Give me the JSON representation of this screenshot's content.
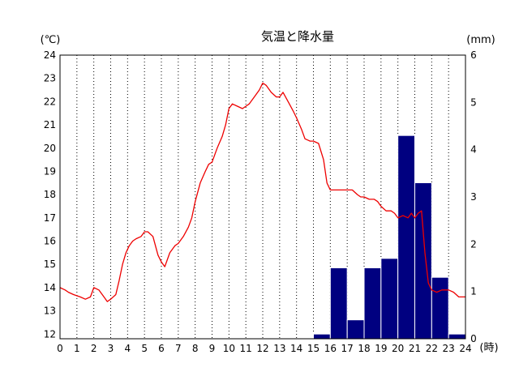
{
  "chart_data": {
    "type": "bar+line",
    "title": "気温と降水量",
    "left_unit": "(℃)",
    "right_unit": "(mm)",
    "x_unit": "(時)",
    "x_ticks": [
      "0",
      "1",
      "2",
      "3",
      "4",
      "5",
      "6",
      "7",
      "8",
      "9",
      "10",
      "11",
      "12",
      "13",
      "14",
      "15",
      "16",
      "17",
      "18",
      "19",
      "20",
      "21",
      "22",
      "23",
      "24"
    ],
    "xlim": [
      0,
      24
    ],
    "ylim_left": [
      11.8,
      24
    ],
    "ylim_right": [
      0,
      6
    ],
    "y_ticks_left": [
      "24",
      "23",
      "22",
      "21",
      "20",
      "19",
      "18",
      "17",
      "16",
      "15",
      "14",
      "13",
      "12"
    ],
    "y_ticks_right": [
      "6",
      "5",
      "4",
      "3",
      "2",
      "1",
      "0"
    ],
    "grid": "vertical dotted at each hour",
    "colors": {
      "temperature": "#ee0000",
      "precipitation": "#000080"
    },
    "series": [
      {
        "kind": "line",
        "axis": "left",
        "x": [
          0,
          0.3,
          0.5,
          0.8,
          1.2,
          1.5,
          1.8,
          2.0,
          2.3,
          2.6,
          2.8,
          3.0,
          3.3,
          3.5,
          3.7,
          3.9,
          4.1,
          4.3,
          4.5,
          4.8,
          5.0,
          5.2,
          5.5,
          5.8,
          6.0,
          6.2,
          6.5,
          6.8,
          7.0,
          7.3,
          7.6,
          7.8,
          8.0,
          8.3,
          8.6,
          8.8,
          9.0,
          9.3,
          9.6,
          9.8,
          10.0,
          10.2,
          10.5,
          10.8,
          11.0,
          11.2,
          11.5,
          11.8,
          12.0,
          12.2,
          12.5,
          12.8,
          13.0,
          13.2,
          13.5,
          13.8,
          14.0,
          14.3,
          14.5,
          14.8,
          15.0,
          15.3,
          15.6,
          15.8,
          16.0,
          16.2,
          16.5,
          16.8,
          17.0,
          17.3,
          17.6,
          17.8,
          18.0,
          18.3,
          18.6,
          18.8,
          19.0,
          19.3,
          19.6,
          19.8,
          20.0,
          20.3,
          20.6,
          20.8,
          21.0,
          21.2,
          21.4,
          21.6,
          21.8,
          22.0,
          22.3,
          22.6,
          22.8,
          23.0,
          23.3,
          23.6,
          23.8,
          24.0
        ],
        "values": [
          14.0,
          13.9,
          13.8,
          13.7,
          13.6,
          13.5,
          13.6,
          14.0,
          13.9,
          13.6,
          13.4,
          13.5,
          13.7,
          14.3,
          15.0,
          15.5,
          15.8,
          16.0,
          16.1,
          16.2,
          16.4,
          16.4,
          16.2,
          15.4,
          15.1,
          14.9,
          15.5,
          15.8,
          15.9,
          16.2,
          16.6,
          17.0,
          17.7,
          18.5,
          19.0,
          19.3,
          19.4,
          20.0,
          20.5,
          21.0,
          21.7,
          21.9,
          21.8,
          21.7,
          21.8,
          21.9,
          22.2,
          22.5,
          22.8,
          22.7,
          22.4,
          22.2,
          22.2,
          22.4,
          22.0,
          21.6,
          21.3,
          20.8,
          20.4,
          20.3,
          20.3,
          20.2,
          19.5,
          18.5,
          18.2,
          18.2,
          18.2,
          18.2,
          18.2,
          18.2,
          18.0,
          17.9,
          17.9,
          17.8,
          17.8,
          17.7,
          17.5,
          17.3,
          17.3,
          17.2,
          17.0,
          17.1,
          17.0,
          17.2,
          17.0,
          17.2,
          17.3,
          15.5,
          14.2,
          13.9,
          13.8,
          13.9,
          13.9,
          13.9,
          13.8,
          13.6,
          13.6,
          13.6
        ]
      },
      {
        "kind": "bar",
        "axis": "right",
        "x": [
          15,
          16,
          17,
          18,
          19,
          20,
          21,
          22,
          23
        ],
        "values": [
          0.1,
          1.5,
          0.4,
          1.5,
          1.7,
          4.3,
          3.3,
          1.3,
          0.1
        ]
      }
    ]
  }
}
